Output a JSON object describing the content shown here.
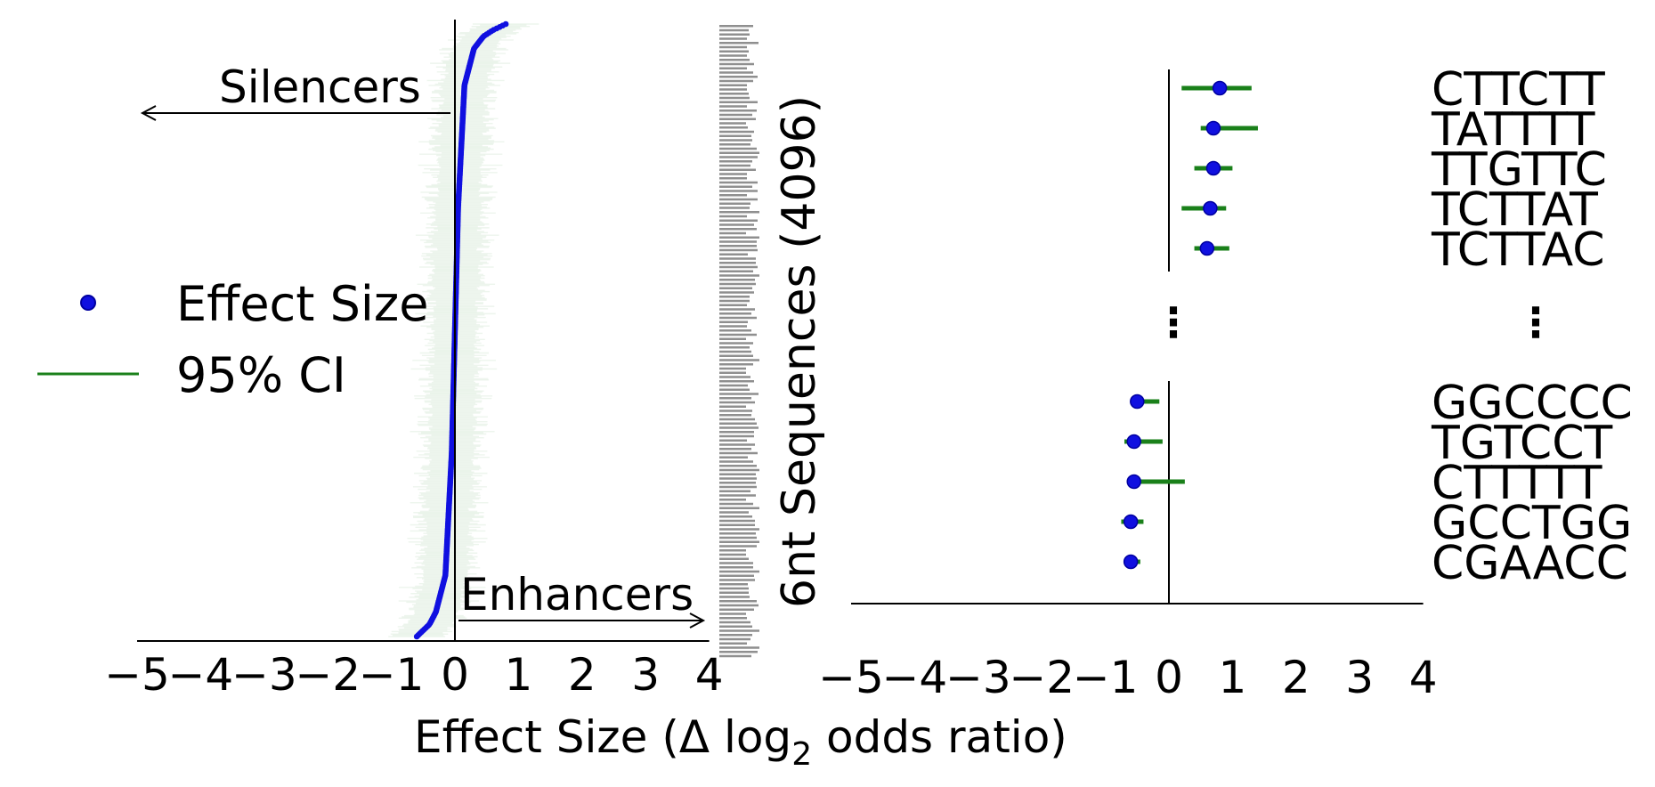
{
  "colors": {
    "effect": "#1010e0",
    "effect_edge": "#0000a0",
    "ci": "#1a801a",
    "axis": "#000000"
  },
  "legend": {
    "effect_label": "Effect Size",
    "ci_label": "95% CI",
    "placement": "center-left"
  },
  "shared_xlabel_prefix": "Effect Size (",
  "shared_xlabel_delta": "Δ",
  "shared_xlabel_log": "log",
  "shared_xlabel_sub": "2",
  "shared_xlabel_suffix": " odds ratio)",
  "chart_data": [
    {
      "type": "scatter",
      "panel": "left",
      "n_points": 4096,
      "xlim": [
        -5,
        4
      ],
      "x_ticks": [
        "−5",
        "−4",
        "−3",
        "−2",
        "−1",
        "0",
        "1",
        "2",
        "3",
        "4"
      ],
      "x_tick_values": [
        -5,
        -4,
        -3,
        -2,
        -1,
        0,
        1,
        2,
        3,
        4
      ],
      "ylabel": "6nt Sequences (4096)",
      "curve_quantiles": [
        [
          0,
          -0.6
        ],
        [
          0.01,
          -0.5
        ],
        [
          0.02,
          -0.4
        ],
        [
          0.04,
          -0.3
        ],
        [
          0.1,
          -0.15
        ],
        [
          0.3,
          -0.05
        ],
        [
          0.5,
          0.0
        ],
        [
          0.7,
          0.05
        ],
        [
          0.9,
          0.15
        ],
        [
          0.96,
          0.3
        ],
        [
          0.98,
          0.45
        ],
        [
          0.99,
          0.6
        ],
        [
          1.0,
          0.8
        ]
      ],
      "annotations": {
        "silencers": "Silencers",
        "enhancers": "Enhancers"
      },
      "grid": false
    },
    {
      "type": "scatter",
      "panel": "right",
      "xlim": [
        -5,
        4
      ],
      "x_ticks": [
        "−5",
        "−4",
        "−3",
        "−2",
        "−1",
        "0",
        "1",
        "2",
        "3",
        "4"
      ],
      "x_tick_values": [
        -5,
        -4,
        -3,
        -2,
        -1,
        0,
        1,
        2,
        3,
        4
      ],
      "ellipsis": "⋮",
      "top": [
        {
          "seq": "CTTCTT",
          "effect": 0.8,
          "ci": [
            0.2,
            1.3
          ]
        },
        {
          "seq": "TATTTT",
          "effect": 0.7,
          "ci": [
            0.5,
            1.4
          ]
        },
        {
          "seq": "TTGTTC",
          "effect": 0.7,
          "ci": [
            0.4,
            1.0
          ]
        },
        {
          "seq": "TCTTAT",
          "effect": 0.65,
          "ci": [
            0.2,
            0.9
          ]
        },
        {
          "seq": "TCTTAC",
          "effect": 0.6,
          "ci": [
            0.4,
            0.95
          ]
        }
      ],
      "bottom": [
        {
          "seq": "GGCCCC",
          "effect": -0.5,
          "ci": [
            -0.55,
            -0.15
          ]
        },
        {
          "seq": "TGTCCT",
          "effect": -0.55,
          "ci": [
            -0.7,
            -0.1
          ]
        },
        {
          "seq": "CTTTTT",
          "effect": -0.55,
          "ci": [
            -0.55,
            0.25
          ]
        },
        {
          "seq": "GCCTGG",
          "effect": -0.6,
          "ci": [
            -0.75,
            -0.4
          ]
        },
        {
          "seq": "CGAACC",
          "effect": -0.6,
          "ci": [
            -0.7,
            -0.45
          ]
        }
      ],
      "grid": false
    }
  ]
}
